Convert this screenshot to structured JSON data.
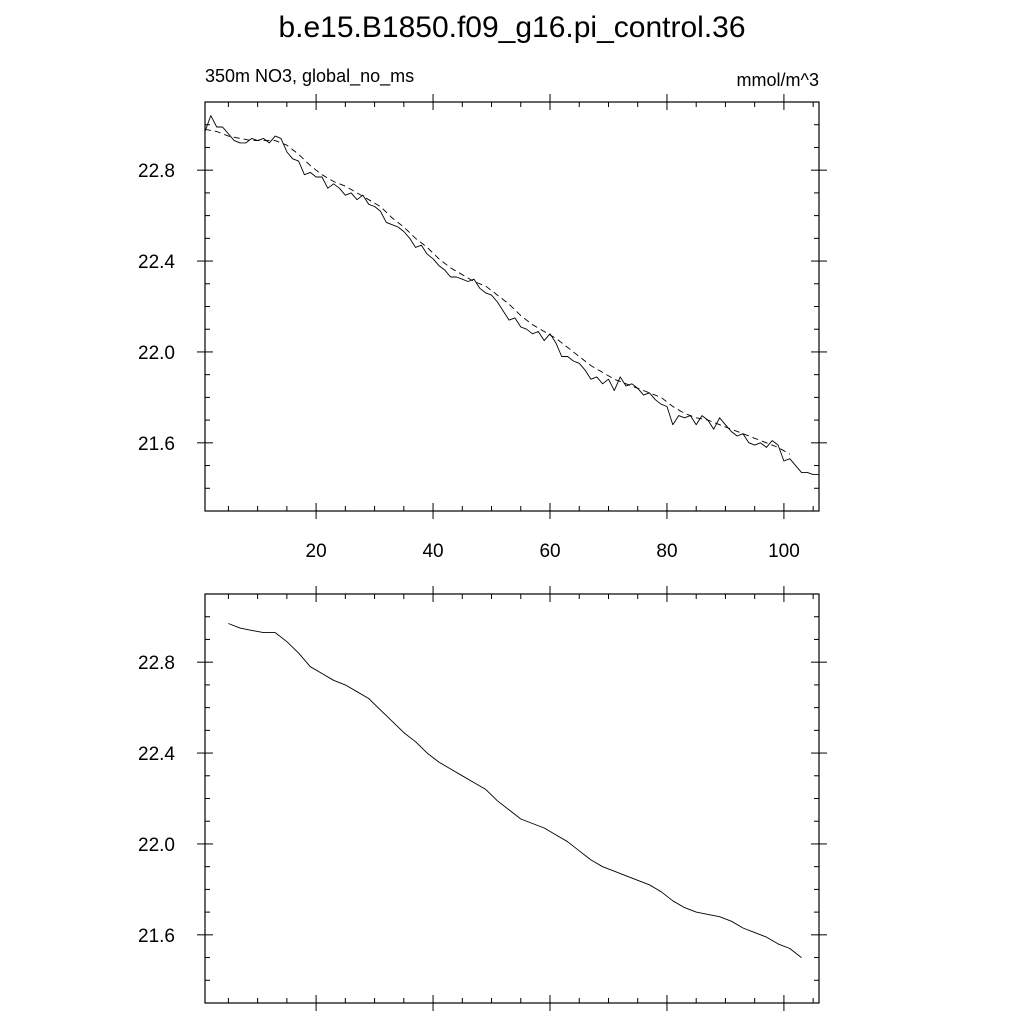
{
  "title": "b.e15.B1850.f09_g16.pi_control.36",
  "top_left_label": "350m NO3, global_no_ms",
  "top_right_label": "mmol/m^3",
  "chart_data": [
    {
      "type": "line",
      "xlim": [
        1,
        106
      ],
      "ylim": [
        21.3,
        23.1
      ],
      "x_ticks": [
        20,
        40,
        60,
        80,
        100
      ],
      "x_tick_labels": [
        "20",
        "40",
        "60",
        "80",
        "100"
      ],
      "y_ticks": [
        21.6,
        22.0,
        22.4,
        22.8
      ],
      "y_tick_labels": [
        "21.6",
        "22.0",
        "22.4",
        "22.8"
      ],
      "grid": false,
      "series": [
        {
          "style": "solid",
          "x": [
            1,
            2,
            3,
            4,
            5,
            6,
            7,
            8,
            9,
            10,
            11,
            12,
            13,
            14,
            15,
            16,
            17,
            18,
            19,
            20,
            21,
            22,
            23,
            24,
            25,
            26,
            27,
            28,
            29,
            30,
            31,
            32,
            33,
            34,
            35,
            36,
            37,
            38,
            39,
            40,
            41,
            42,
            43,
            44,
            45,
            46,
            47,
            48,
            49,
            50,
            51,
            52,
            53,
            54,
            55,
            56,
            57,
            58,
            59,
            60,
            61,
            62,
            63,
            64,
            65,
            66,
            67,
            68,
            69,
            70,
            71,
            72,
            73,
            74,
            75,
            76,
            77,
            78,
            79,
            80,
            81,
            82,
            83,
            84,
            85,
            86,
            87,
            88,
            89,
            90,
            91,
            92,
            93,
            94,
            95,
            96,
            97,
            98,
            99,
            100,
            101,
            102,
            103,
            104,
            105,
            106
          ],
          "y": [
            22.97,
            23.04,
            22.99,
            22.99,
            22.96,
            22.93,
            22.92,
            22.92,
            22.94,
            22.93,
            22.94,
            22.92,
            22.95,
            22.94,
            22.88,
            22.85,
            22.84,
            22.78,
            22.79,
            22.77,
            22.77,
            22.72,
            22.74,
            22.72,
            22.69,
            22.7,
            22.67,
            22.69,
            22.65,
            22.64,
            22.62,
            22.57,
            22.56,
            22.55,
            22.53,
            22.5,
            22.46,
            22.47,
            22.43,
            22.41,
            22.38,
            22.36,
            22.33,
            22.33,
            22.32,
            22.31,
            22.32,
            22.28,
            22.26,
            22.25,
            22.22,
            22.18,
            22.14,
            22.15,
            22.11,
            22.1,
            22.08,
            22.09,
            22.05,
            22.08,
            22.04,
            21.98,
            21.98,
            21.96,
            21.95,
            21.92,
            21.88,
            21.89,
            21.86,
            21.88,
            21.83,
            21.89,
            21.85,
            21.86,
            21.84,
            21.81,
            21.82,
            21.79,
            21.77,
            21.76,
            21.68,
            21.72,
            21.71,
            21.72,
            21.68,
            21.72,
            21.7,
            21.66,
            21.71,
            21.68,
            21.65,
            21.63,
            21.64,
            21.6,
            21.59,
            21.6,
            21.58,
            21.61,
            21.59,
            21.52,
            21.53,
            21.5,
            21.47,
            21.47,
            21.46,
            21.46
          ]
        },
        {
          "style": "dashed",
          "x": [
            1,
            3,
            5,
            7,
            9,
            11,
            13,
            15,
            17,
            19,
            21,
            23,
            25,
            27,
            29,
            31,
            33,
            35,
            37,
            39,
            41,
            43,
            45,
            47,
            49,
            51,
            53,
            55,
            57,
            59,
            61,
            63,
            65,
            67,
            69,
            71,
            73,
            75,
            77,
            79,
            81,
            83,
            85,
            87,
            89,
            91,
            93,
            95,
            97,
            99,
            101
          ],
          "y": [
            22.98,
            22.97,
            22.95,
            22.94,
            22.93,
            22.93,
            22.93,
            22.91,
            22.87,
            22.82,
            22.78,
            22.75,
            22.73,
            22.7,
            22.67,
            22.64,
            22.59,
            22.55,
            22.5,
            22.46,
            22.41,
            22.37,
            22.34,
            22.31,
            22.29,
            22.25,
            22.21,
            22.16,
            22.12,
            22.09,
            22.06,
            22.02,
            21.98,
            21.94,
            21.91,
            21.88,
            21.86,
            21.84,
            21.82,
            21.8,
            21.76,
            21.73,
            21.71,
            21.7,
            21.68,
            21.66,
            21.64,
            21.62,
            21.6,
            21.58,
            21.55
          ]
        }
      ]
    },
    {
      "type": "line",
      "xlim": [
        1,
        106
      ],
      "ylim": [
        21.3,
        23.1
      ],
      "y_ticks": [
        21.6,
        22.0,
        22.4,
        22.8
      ],
      "y_tick_labels": [
        "21.6",
        "22.0",
        "22.4",
        "22.8"
      ],
      "grid": false,
      "series": [
        {
          "style": "solid",
          "x": [
            5,
            7,
            9,
            11,
            13,
            15,
            17,
            19,
            21,
            23,
            25,
            27,
            29,
            31,
            33,
            35,
            37,
            39,
            41,
            43,
            45,
            47,
            49,
            51,
            53,
            55,
            57,
            59,
            61,
            63,
            65,
            67,
            69,
            71,
            73,
            75,
            77,
            79,
            81,
            83,
            85,
            87,
            89,
            91,
            93,
            95,
            97,
            99,
            101,
            103
          ],
          "y": [
            22.97,
            22.95,
            22.94,
            22.93,
            22.93,
            22.89,
            22.84,
            22.78,
            22.75,
            22.72,
            22.7,
            22.67,
            22.64,
            22.59,
            22.54,
            22.49,
            22.45,
            22.4,
            22.36,
            22.33,
            22.3,
            22.27,
            22.24,
            22.19,
            22.15,
            22.11,
            22.09,
            22.07,
            22.04,
            22.01,
            21.97,
            21.93,
            21.9,
            21.88,
            21.86,
            21.84,
            21.82,
            21.79,
            21.75,
            21.72,
            21.7,
            21.69,
            21.68,
            21.66,
            21.63,
            21.61,
            21.59,
            21.56,
            21.54,
            21.5
          ]
        }
      ]
    }
  ]
}
